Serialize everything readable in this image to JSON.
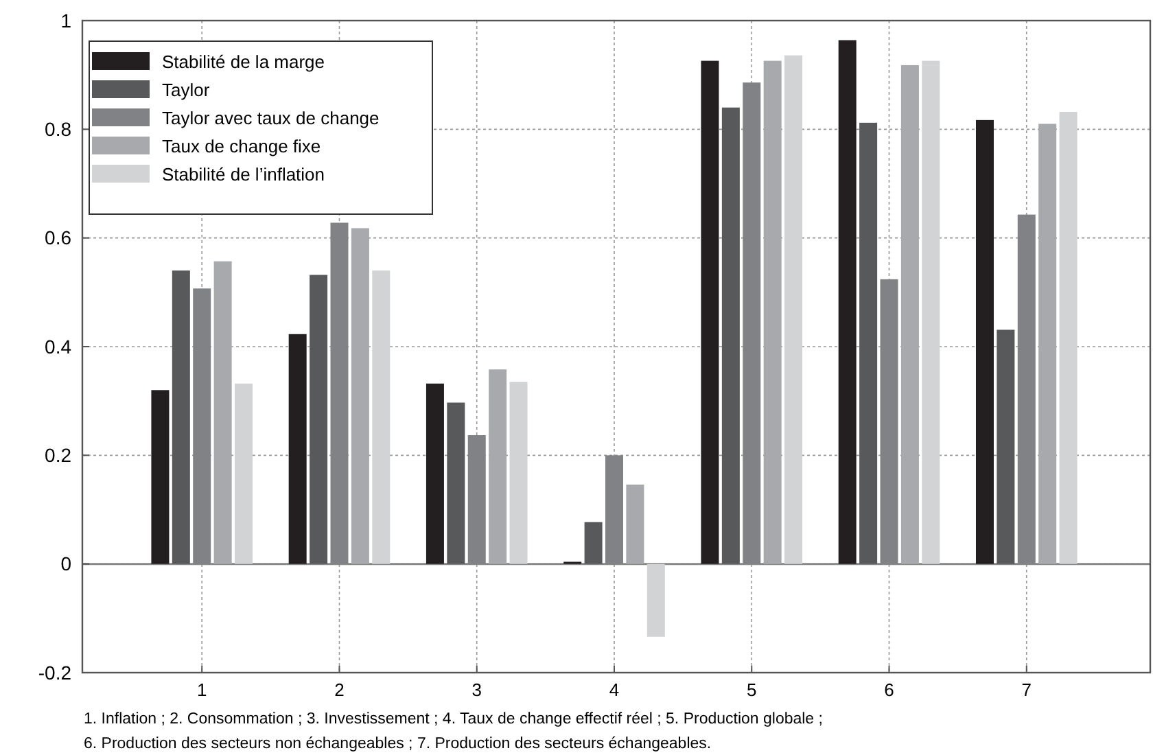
{
  "chart_data": {
    "type": "bar",
    "categories": [
      "1",
      "2",
      "3",
      "4",
      "5",
      "6",
      "7"
    ],
    "series": [
      {
        "name": "Stabilité de la marge",
        "color": "#231f20",
        "values": [
          0.32,
          0.423,
          0.332,
          0.004,
          0.926,
          0.964,
          0.817
        ]
      },
      {
        "name": "Taylor",
        "color": "#58595b",
        "values": [
          0.54,
          0.532,
          0.297,
          0.077,
          0.84,
          0.812,
          0.431
        ]
      },
      {
        "name": "Taylor avec taux de change",
        "color": "#808285",
        "values": [
          0.507,
          0.628,
          0.237,
          0.2,
          0.886,
          0.524,
          0.643
        ]
      },
      {
        "name": "Taux de change fixe",
        "color": "#a7a9ac",
        "values": [
          0.557,
          0.618,
          0.358,
          0.146,
          0.926,
          0.918,
          0.81
        ]
      },
      {
        "name": "Stabilité de l’inflation",
        "color": "#d1d3d4",
        "values": [
          0.332,
          0.54,
          0.335,
          -0.134,
          0.936,
          0.926,
          0.832
        ]
      }
    ],
    "ylim": [
      -0.2,
      1
    ],
    "yticks": [
      -0.2,
      0,
      0.2,
      0.4,
      0.6,
      0.8,
      1
    ],
    "grid": true,
    "legend": "top left",
    "annotations": [
      "1. Inflation ; 2. Consommation ; 3. Investissement ; 4. Taux de change effectif réel ; 5. Production globale ;",
      "6. Production des secteurs non échangeables ; 7. Production des secteurs échangeables."
    ]
  }
}
